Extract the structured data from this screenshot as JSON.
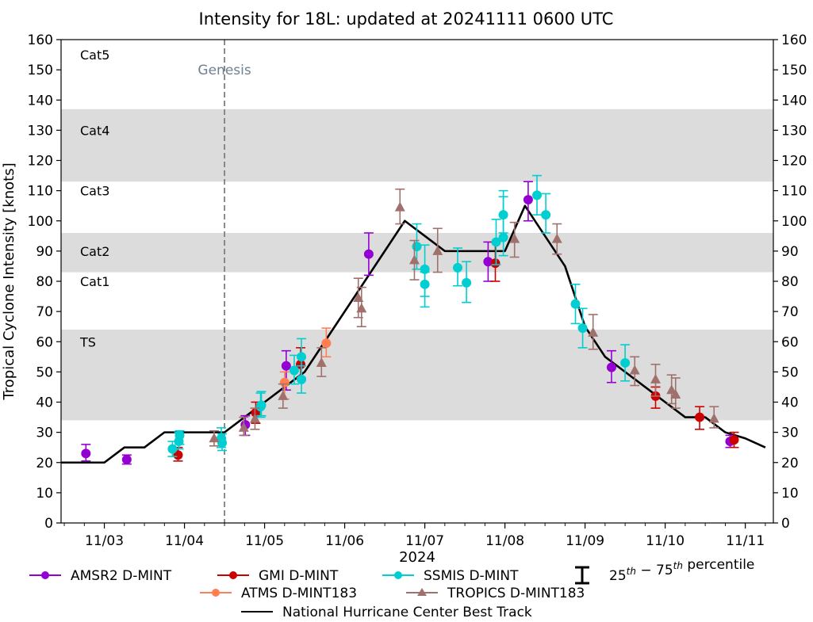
{
  "chart_data": {
    "type": "scatter",
    "title": "Intensity for 18L: updated at 20241111 0600 UTC",
    "xlabel": "2024",
    "ylabel": "Tropical Cyclone Intensity [knots]",
    "x_unit": "day of November 2024 (fractional)",
    "xlim": [
      2.46,
      11.35
    ],
    "ylim": [
      0,
      160
    ],
    "yticks": [
      0,
      10,
      20,
      30,
      40,
      50,
      60,
      70,
      80,
      90,
      100,
      110,
      120,
      130,
      140,
      150,
      160
    ],
    "xticks": [
      {
        "day": 3,
        "label": "11/03"
      },
      {
        "day": 4,
        "label": "11/04"
      },
      {
        "day": 5,
        "label": "11/05"
      },
      {
        "day": 6,
        "label": "11/06"
      },
      {
        "day": 7,
        "label": "11/07"
      },
      {
        "day": 8,
        "label": "11/08"
      },
      {
        "day": 9,
        "label": "11/09"
      },
      {
        "day": 10,
        "label": "11/10"
      },
      {
        "day": 11,
        "label": "11/11"
      }
    ],
    "grid": false,
    "category_bands": [
      {
        "label": "TS",
        "from": 34,
        "to": 64,
        "shaded": true,
        "label_at": 60
      },
      {
        "label": "Cat1",
        "from": 64,
        "to": 83,
        "shaded": false,
        "label_at": 80
      },
      {
        "label": "Cat2",
        "from": 83,
        "to": 96,
        "shaded": true,
        "label_at": 90
      },
      {
        "label": "Cat3",
        "from": 96,
        "to": 113,
        "shaded": false,
        "label_at": 110
      },
      {
        "label": "Cat4",
        "from": 113,
        "to": 137,
        "shaded": true,
        "label_at": 130
      },
      {
        "label": "Cat5",
        "from": 137,
        "to": 160,
        "shaded": false,
        "label_at": 155
      }
    ],
    "genesis": {
      "day": 4.5,
      "label": "Genesis",
      "label_value": 150
    },
    "series": [
      {
        "name": "AMSR2 D-MINT",
        "color": "#9400d3",
        "marker": "circle",
        "points": [
          {
            "x": 2.77,
            "y": 23,
            "lo": 20.5,
            "hi": 26
          },
          {
            "x": 3.28,
            "y": 21,
            "lo": 19.5,
            "hi": 22.5
          },
          {
            "x": 4.76,
            "y": 32.5,
            "lo": 29,
            "hi": 35.5
          },
          {
            "x": 5.27,
            "y": 52,
            "lo": 44,
            "hi": 57
          },
          {
            "x": 6.3,
            "y": 89,
            "lo": 82,
            "hi": 96
          },
          {
            "x": 7.79,
            "y": 86.5,
            "lo": 80,
            "hi": 93
          },
          {
            "x": 8.29,
            "y": 107,
            "lo": 100,
            "hi": 113
          },
          {
            "x": 9.33,
            "y": 51.5,
            "lo": 46.5,
            "hi": 57
          },
          {
            "x": 10.81,
            "y": 27,
            "lo": 25,
            "hi": 29
          }
        ]
      },
      {
        "name": "GMI D-MINT",
        "color": "#cc0000",
        "marker": "circle",
        "points": [
          {
            "x": 3.92,
            "y": 22.5,
            "lo": 20.5,
            "hi": 25
          },
          {
            "x": 4.89,
            "y": 36.5,
            "lo": 33,
            "hi": 40
          },
          {
            "x": 5.45,
            "y": 52.5,
            "lo": 48,
            "hi": 58
          },
          {
            "x": 7.88,
            "y": 86,
            "lo": 80,
            "hi": 93
          },
          {
            "x": 9.88,
            "y": 42,
            "lo": 38,
            "hi": 45
          },
          {
            "x": 10.43,
            "y": 35,
            "lo": 31,
            "hi": 38.5
          },
          {
            "x": 10.86,
            "y": 27.5,
            "lo": 25,
            "hi": 30
          }
        ]
      },
      {
        "name": "SSMIS D-MINT",
        "color": "#00ced1",
        "marker": "circle",
        "points": [
          {
            "x": 3.85,
            "y": 24.5,
            "lo": 22,
            "hi": 27
          },
          {
            "x": 3.93,
            "y": 27,
            "lo": 24.5,
            "hi": 30
          },
          {
            "x": 3.94,
            "y": 29,
            "lo": 26,
            "hi": 30.5
          },
          {
            "x": 4.46,
            "y": 28,
            "lo": 25,
            "hi": 31.5
          },
          {
            "x": 4.47,
            "y": 26.5,
            "lo": 24,
            "hi": 29.5
          },
          {
            "x": 4.95,
            "y": 38.5,
            "lo": 35,
            "hi": 43
          },
          {
            "x": 4.96,
            "y": 39,
            "lo": 35.5,
            "hi": 43.5
          },
          {
            "x": 5.37,
            "y": 50.5,
            "lo": 46,
            "hi": 55.5
          },
          {
            "x": 5.46,
            "y": 55,
            "lo": 48,
            "hi": 61
          },
          {
            "x": 5.46,
            "y": 47.5,
            "lo": 43,
            "hi": 52
          },
          {
            "x": 6.9,
            "y": 91.5,
            "lo": 84,
            "hi": 99
          },
          {
            "x": 7.0,
            "y": 84,
            "lo": 75,
            "hi": 92
          },
          {
            "x": 7.0,
            "y": 79,
            "lo": 71.5,
            "hi": 83
          },
          {
            "x": 7.41,
            "y": 84.5,
            "lo": 78.5,
            "hi": 91
          },
          {
            "x": 7.52,
            "y": 79.5,
            "lo": 73,
            "hi": 86.5
          },
          {
            "x": 7.89,
            "y": 93,
            "lo": 85.5,
            "hi": 100.5
          },
          {
            "x": 7.98,
            "y": 94.5,
            "lo": 88.5,
            "hi": 108
          },
          {
            "x": 7.98,
            "y": 102,
            "lo": 96,
            "hi": 110
          },
          {
            "x": 8.4,
            "y": 108.5,
            "lo": 102,
            "hi": 115
          },
          {
            "x": 8.51,
            "y": 102,
            "lo": 96,
            "hi": 109
          },
          {
            "x": 8.88,
            "y": 72.5,
            "lo": 66,
            "hi": 79
          },
          {
            "x": 8.97,
            "y": 64.5,
            "lo": 58,
            "hi": 71
          },
          {
            "x": 9.5,
            "y": 53,
            "lo": 47,
            "hi": 59
          }
        ]
      },
      {
        "name": "ATMS D-MINT183",
        "color": "#ff7f50",
        "marker": "circle",
        "points": [
          {
            "x": 5.25,
            "y": 46.5,
            "lo": 41,
            "hi": 50
          },
          {
            "x": 5.77,
            "y": 59.5,
            "lo": 55,
            "hi": 64.5
          }
        ]
      },
      {
        "name": "TROPICS D-MINT183",
        "color": "#a0716c",
        "marker": "triangle",
        "points": [
          {
            "x": 4.37,
            "y": 28,
            "lo": 25.5,
            "hi": 30.5
          },
          {
            "x": 4.74,
            "y": 31.5,
            "lo": 29,
            "hi": 35
          },
          {
            "x": 4.88,
            "y": 34.5,
            "lo": 31,
            "hi": 38
          },
          {
            "x": 5.23,
            "y": 42,
            "lo": 38,
            "hi": 46
          },
          {
            "x": 5.71,
            "y": 53,
            "lo": 48.5,
            "hi": 58
          },
          {
            "x": 6.17,
            "y": 74.5,
            "lo": 68,
            "hi": 81
          },
          {
            "x": 6.21,
            "y": 71,
            "lo": 65,
            "hi": 78
          },
          {
            "x": 6.69,
            "y": 104.5,
            "lo": 99,
            "hi": 110.5
          },
          {
            "x": 6.87,
            "y": 87,
            "lo": 80.5,
            "hi": 93.5
          },
          {
            "x": 7.16,
            "y": 90,
            "lo": 83,
            "hi": 97.5
          },
          {
            "x": 8.12,
            "y": 94,
            "lo": 88,
            "hi": 99.5
          },
          {
            "x": 8.65,
            "y": 94,
            "lo": 89,
            "hi": 99
          },
          {
            "x": 9.1,
            "y": 63,
            "lo": 57.5,
            "hi": 69
          },
          {
            "x": 9.62,
            "y": 50.5,
            "lo": 45.5,
            "hi": 55
          },
          {
            "x": 9.88,
            "y": 47.5,
            "lo": 42,
            "hi": 52.5
          },
          {
            "x": 10.08,
            "y": 44,
            "lo": 39.5,
            "hi": 49
          },
          {
            "x": 10.13,
            "y": 42.5,
            "lo": 38,
            "hi": 48
          },
          {
            "x": 10.61,
            "y": 34.5,
            "lo": 31.5,
            "hi": 38.5
          }
        ]
      }
    ],
    "best_track": {
      "name": "National Hurricane Center Best Track",
      "color": "#000000",
      "points": [
        {
          "x": 2.46,
          "y": 20
        },
        {
          "x": 3.0,
          "y": 20
        },
        {
          "x": 3.25,
          "y": 25
        },
        {
          "x": 3.5,
          "y": 25
        },
        {
          "x": 3.75,
          "y": 30
        },
        {
          "x": 4.5,
          "y": 30
        },
        {
          "x": 4.75,
          "y": 35
        },
        {
          "x": 5.0,
          "y": 40
        },
        {
          "x": 5.25,
          "y": 45
        },
        {
          "x": 5.5,
          "y": 50
        },
        {
          "x": 5.75,
          "y": 60
        },
        {
          "x": 6.0,
          "y": 70
        },
        {
          "x": 6.25,
          "y": 80
        },
        {
          "x": 6.5,
          "y": 90
        },
        {
          "x": 6.75,
          "y": 100
        },
        {
          "x": 7.0,
          "y": 95
        },
        {
          "x": 7.25,
          "y": 90
        },
        {
          "x": 7.5,
          "y": 90
        },
        {
          "x": 7.75,
          "y": 90
        },
        {
          "x": 8.0,
          "y": 90
        },
        {
          "x": 8.25,
          "y": 105
        },
        {
          "x": 8.5,
          "y": 95
        },
        {
          "x": 8.75,
          "y": 85
        },
        {
          "x": 9.0,
          "y": 65
        },
        {
          "x": 9.25,
          "y": 55
        },
        {
          "x": 9.5,
          "y": 50
        },
        {
          "x": 9.75,
          "y": 45
        },
        {
          "x": 10.0,
          "y": 40
        },
        {
          "x": 10.25,
          "y": 35
        },
        {
          "x": 10.5,
          "y": 35
        },
        {
          "x": 10.75,
          "y": 30
        },
        {
          "x": 11.0,
          "y": 28
        },
        {
          "x": 11.25,
          "y": 25
        }
      ]
    },
    "legend": {
      "placement": "bottom-center",
      "entries": [
        {
          "label": "AMSR2 D-MINT",
          "kind": "circle",
          "color": "#9400d3"
        },
        {
          "label": "GMI D-MINT",
          "kind": "circle",
          "color": "#cc0000"
        },
        {
          "label": "SSMIS D-MINT",
          "kind": "circle",
          "color": "#00ced1"
        },
        {
          "label": "ATMS D-MINT183",
          "kind": "circle",
          "color": "#ff7f50"
        },
        {
          "label": "TROPICS D-MINT183",
          "kind": "triangle",
          "color": "#a0716c"
        },
        {
          "label": "National Hurricane Center Best Track",
          "kind": "line",
          "color": "#000000"
        }
      ],
      "errorbar_entry": {
        "label_a": "25",
        "sup_a": "th",
        "dash": " − ",
        "label_b": "75",
        "sup_b": "th",
        "label_c": " percentile"
      }
    }
  }
}
